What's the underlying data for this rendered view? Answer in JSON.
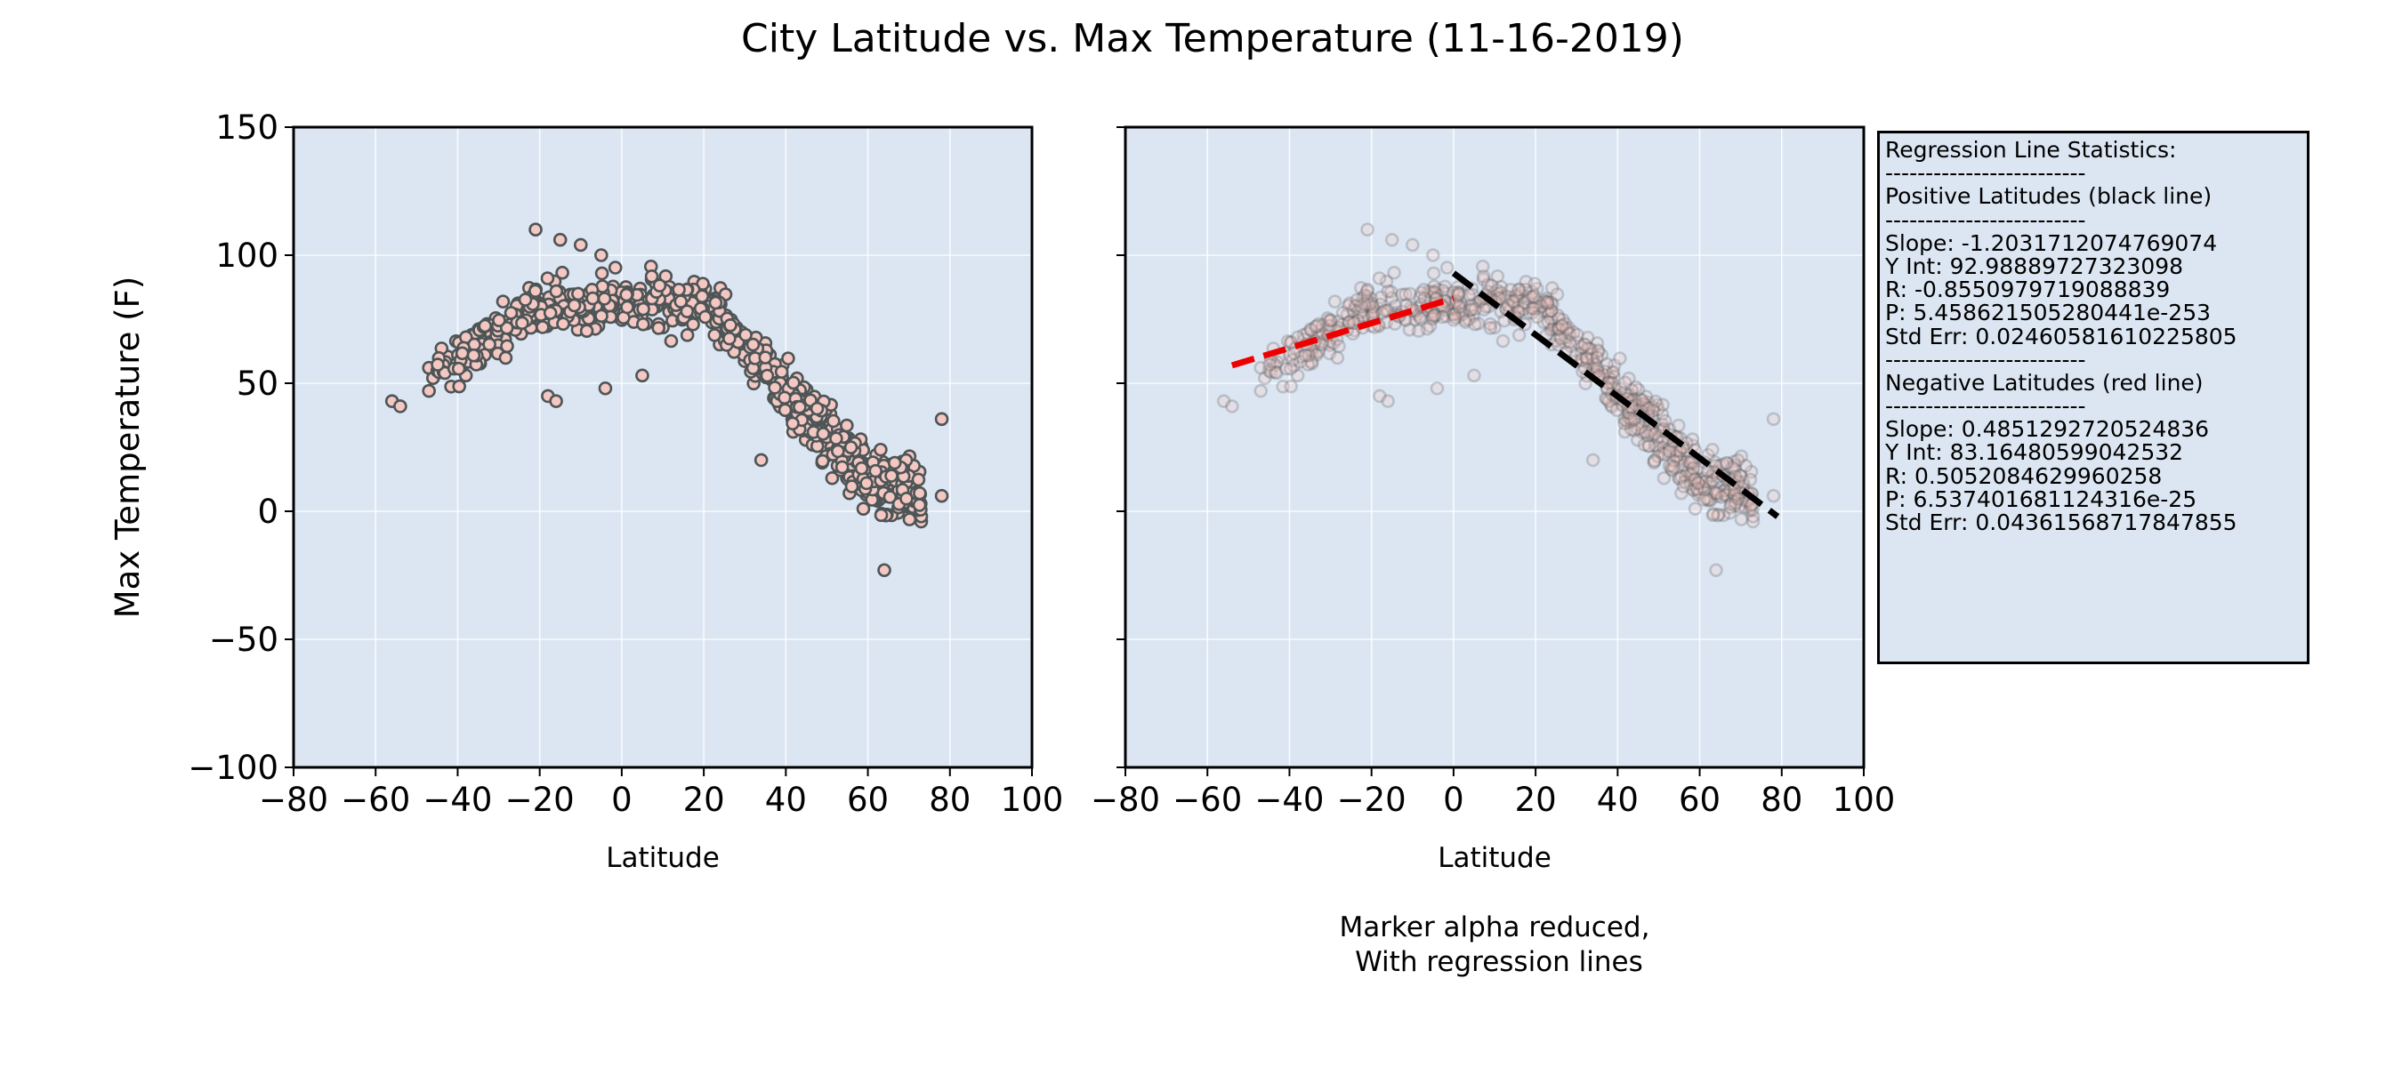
{
  "figure": {
    "title": "City Latitude vs. Max Temperature (11-16-2019)"
  },
  "chart_data": [
    {
      "type": "scatter",
      "xlabel": "Latitude",
      "ylabel": "Max Temperature (F)",
      "xlim": [
        -80,
        100
      ],
      "ylim": [
        -100,
        150
      ],
      "x_ticks": [
        "−80",
        "−60",
        "−40",
        "−20",
        "0",
        "20",
        "40",
        "60",
        "80",
        "100"
      ],
      "y_ticks": [
        "150",
        "100",
        "50",
        "0",
        "−50",
        "−100"
      ],
      "grid": true,
      "marker": {
        "face": "#f4c7c3",
        "edge": "#4d5556",
        "alpha": 1.0
      },
      "background": "#dce6f2"
    },
    {
      "type": "scatter",
      "xlabel": "Latitude",
      "caption": [
        "Marker alpha reduced,",
        " With regression lines"
      ],
      "xlim": [
        -80,
        100
      ],
      "ylim": [
        -100,
        150
      ],
      "x_ticks": [
        "−80",
        "−60",
        "−40",
        "−20",
        "0",
        "20",
        "40",
        "60",
        "80",
        "100"
      ],
      "grid": true,
      "marker": {
        "face": "#f4c7c3",
        "edge": "#4d5556",
        "alpha": 0.25
      },
      "background": "#dce6f2",
      "regression_lines": [
        {
          "slope": -1.2031712074769074,
          "intercept": 92.98889727323098,
          "x_range": [
            0,
            79
          ],
          "color": "#000000"
        },
        {
          "slope": 0.4851292720524836,
          "intercept": 83.16480599042532,
          "x_range": [
            -54,
            0
          ],
          "color": "#ee0000"
        }
      ]
    }
  ],
  "stats_box": {
    "lines": [
      "Regression Line Statistics:",
      "-------------------------",
      "Positive Latitudes (black line)",
      "-------------------------",
      "Slope: -1.2031712074769074",
      "Y Int: 92.98889727323098",
      "R: -0.8550979719088839",
      "P: 5.458621505280441e-253",
      "Std Err: 0.02460581610225805",
      "-------------------------",
      "Negative Latitudes (red line)",
      "-------------------------",
      "Slope: 0.4851292720524836",
      "Y Int: 83.16480599042532",
      "R: 0.5052084629960258",
      "P: 6.537401681124316e-25",
      "Std Err: 0.04361568717847855"
    ]
  },
  "colors": {
    "axes_background": "#dce6f2",
    "grid": "#ffffff",
    "marker_face": "#f4c7c3",
    "marker_edge": "#4d5556",
    "positive_line": "#000000",
    "negative_line": "#ee0000"
  }
}
